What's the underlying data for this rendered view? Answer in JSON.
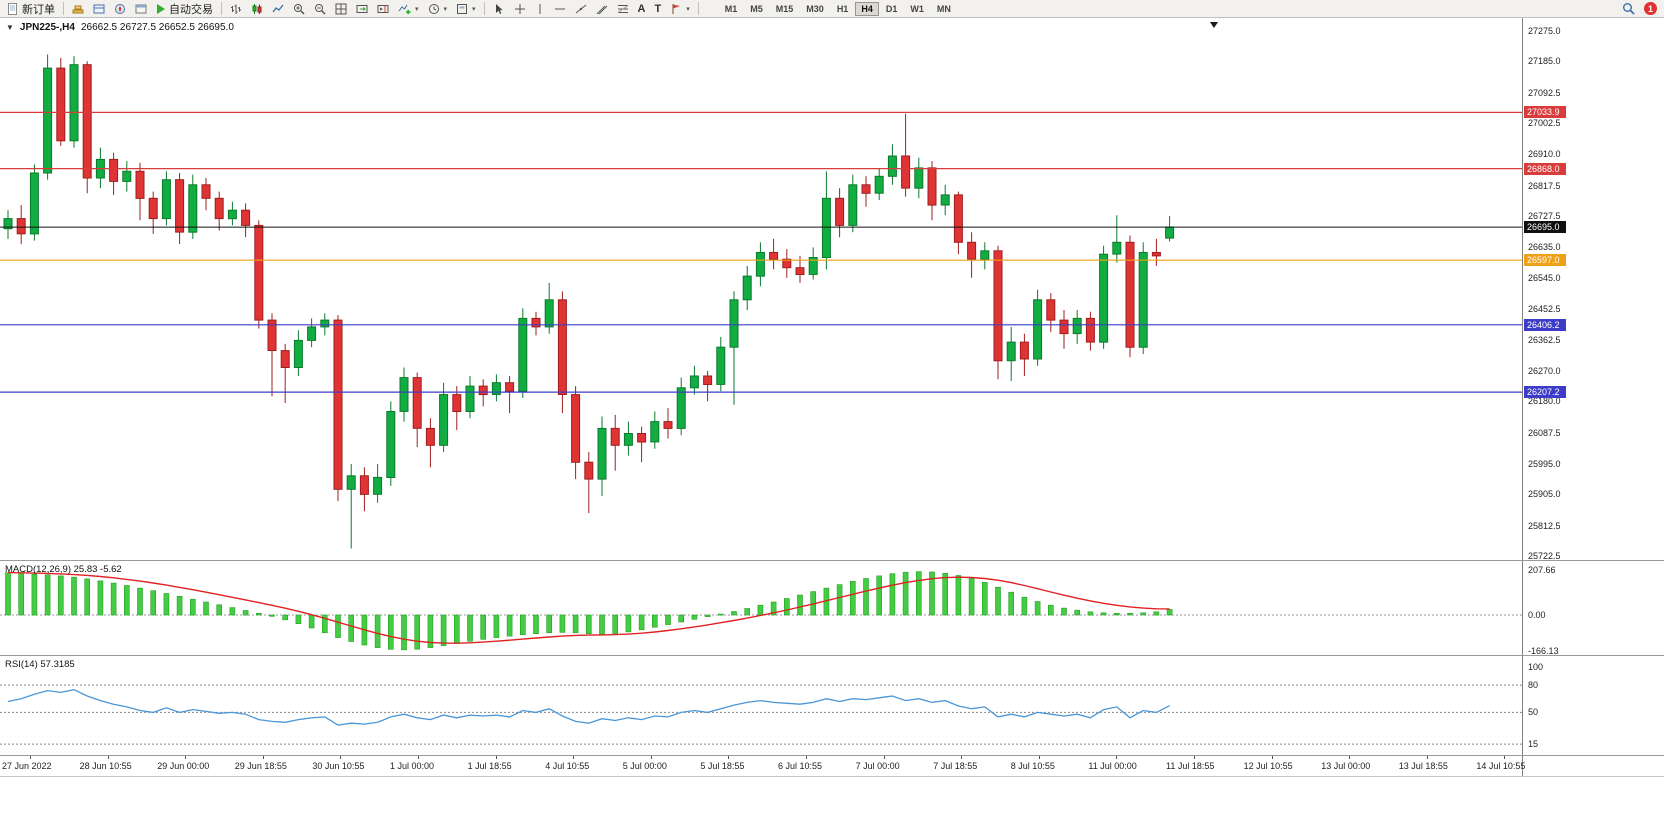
{
  "toolbar": {
    "new_order": "新订单",
    "auto_trading": "自动交易",
    "timeframes": [
      "M1",
      "M5",
      "M15",
      "M30",
      "H1",
      "H4",
      "D1",
      "W1",
      "MN"
    ],
    "active_timeframe": "H4",
    "text_tool_label": "A",
    "label_tool_label": "T",
    "notification_count": "1"
  },
  "chart": {
    "symbol_title": "JPN225-,H4",
    "ohlc_text": "26662.5 26727.5 26652.5 26695.0",
    "price_axis_labels": [
      "27275.0",
      "27185.0",
      "27092.5",
      "27002.5",
      "26910.0",
      "26817.5",
      "26727.5",
      "26635.0",
      "26545.0",
      "26452.5",
      "26362.5",
      "26270.0",
      "26180.0",
      "26087.5",
      "25995.0",
      "25905.0",
      "25812.5",
      "25722.5"
    ],
    "levels": [
      {
        "label": "27033.9",
        "price": 27033.9,
        "color": "#d83c3c"
      },
      {
        "label": "26868.0",
        "price": 26868.0,
        "color": "#d83c3c"
      },
      {
        "label": "26597.0",
        "price": 26597.0,
        "color": "#efa019"
      },
      {
        "label": "26406.2",
        "price": 26406.2,
        "color": "#3c3cc8"
      },
      {
        "label": "26207.2",
        "price": 26207.2,
        "color": "#3c3cc8"
      }
    ],
    "current_price": {
      "label": "26695.0",
      "price": 26695.0,
      "color": "#101010"
    }
  },
  "macd_panel": {
    "label": "MACD(12,26,9) 25.83 -5.62",
    "axis_labels": [
      {
        "label": "207.66",
        "value": 207.66
      },
      {
        "label": "0.00",
        "value": 0
      },
      {
        "label": "-166.13",
        "value": -166.13
      }
    ]
  },
  "rsi_panel": {
    "label": "RSI(14) 57.3185",
    "axis_labels": [
      {
        "label": "100",
        "value": 100
      },
      {
        "label": "80",
        "value": 80
      },
      {
        "label": "50",
        "value": 50
      },
      {
        "label": "15",
        "value": 15
      }
    ],
    "levels": [
      80,
      50,
      15
    ]
  },
  "time_axis": {
    "labels": [
      "27 Jun 2022",
      "28 Jun 10:55",
      "29 Jun 00:00",
      "29 Jun 18:55",
      "30 Jun 10:55",
      "1 Jul 00:00",
      "1 Jul 18:55",
      "4 Jul 10:55",
      "5 Jul 00:00",
      "5 Jul 18:55",
      "6 Jul 10:55",
      "7 Jul 00:00",
      "7 Jul 18:55",
      "8 Jul 10:55",
      "11 Jul 00:00",
      "11 Jul 18:55",
      "12 Jul 10:55",
      "13 Jul 00:00",
      "13 Jul 18:55",
      "14 Jul 10:55"
    ]
  },
  "chart_data": {
    "type": "candlestick",
    "title": "JPN225-,H4",
    "symbol": "JPN225",
    "timeframe": "H4",
    "ylim": [
      25711,
      27313
    ],
    "colors": {
      "bull": "#12ad42",
      "bull_stroke": "#0a7a2c",
      "bear": "#e03434",
      "bear_stroke": "#9e1e1e",
      "macd_bar": "#45cc45",
      "macd_bar_stroke": "#22a022",
      "macd_signal": "#e02222",
      "rsi_line": "#4a97d8"
    },
    "candles": [
      [
        26690,
        26745,
        26660,
        26720
      ],
      [
        26720,
        26760,
        26645,
        26675
      ],
      [
        26675,
        26880,
        26655,
        26855
      ],
      [
        26855,
        27205,
        26835,
        27165
      ],
      [
        27165,
        27195,
        26935,
        26950
      ],
      [
        26950,
        27200,
        26930,
        27175
      ],
      [
        27175,
        27185,
        26795,
        26840
      ],
      [
        26840,
        26930,
        26810,
        26895
      ],
      [
        26895,
        26915,
        26790,
        26830
      ],
      [
        26830,
        26890,
        26800,
        26860
      ],
      [
        26860,
        26885,
        26715,
        26780
      ],
      [
        26780,
        26800,
        26675,
        26720
      ],
      [
        26720,
        26860,
        26700,
        26835
      ],
      [
        26835,
        26855,
        26645,
        26680
      ],
      [
        26680,
        26850,
        26660,
        26820
      ],
      [
        26820,
        26840,
        26745,
        26780
      ],
      [
        26780,
        26800,
        26685,
        26720
      ],
      [
        26720,
        26770,
        26700,
        26745
      ],
      [
        26745,
        26765,
        26665,
        26700
      ],
      [
        26700,
        26715,
        26395,
        26420
      ],
      [
        26420,
        26440,
        26195,
        26330
      ],
      [
        26330,
        26350,
        26175,
        26280
      ],
      [
        26280,
        26390,
        26255,
        26360
      ],
      [
        26360,
        26425,
        26340,
        26400
      ],
      [
        26400,
        26440,
        26375,
        26420
      ],
      [
        26420,
        26435,
        25885,
        25920
      ],
      [
        25920,
        25995,
        25745,
        25960
      ],
      [
        25960,
        25985,
        25855,
        25905
      ],
      [
        25905,
        25995,
        25880,
        25955
      ],
      [
        25955,
        26180,
        25930,
        26150
      ],
      [
        26150,
        26280,
        26120,
        26250
      ],
      [
        26250,
        26265,
        26045,
        26100
      ],
      [
        26100,
        26130,
        25985,
        26050
      ],
      [
        26050,
        26235,
        26030,
        26200
      ],
      [
        26200,
        26225,
        26095,
        26150
      ],
      [
        26150,
        26255,
        26130,
        26225
      ],
      [
        26225,
        26245,
        26165,
        26200
      ],
      [
        26200,
        26260,
        26180,
        26235
      ],
      [
        26235,
        26255,
        26145,
        26210
      ],
      [
        26210,
        26455,
        26190,
        26425
      ],
      [
        26425,
        26445,
        26375,
        26400
      ],
      [
        26400,
        26530,
        26380,
        26480
      ],
      [
        26480,
        26505,
        26145,
        26200
      ],
      [
        26200,
        26225,
        25950,
        26000
      ],
      [
        26000,
        26030,
        25850,
        25950
      ],
      [
        25950,
        26135,
        25900,
        26100
      ],
      [
        26100,
        26140,
        25975,
        26050
      ],
      [
        26050,
        26120,
        26020,
        26085
      ],
      [
        26085,
        26105,
        26000,
        26060
      ],
      [
        26060,
        26150,
        26040,
        26120
      ],
      [
        26120,
        26160,
        26070,
        26100
      ],
      [
        26100,
        26250,
        26080,
        26220
      ],
      [
        26220,
        26285,
        26200,
        26255
      ],
      [
        26255,
        26270,
        26180,
        26230
      ],
      [
        26230,
        26370,
        26210,
        26340
      ],
      [
        26340,
        26505,
        26170,
        26480
      ],
      [
        26480,
        26580,
        26450,
        26550
      ],
      [
        26550,
        26650,
        26520,
        26620
      ],
      [
        26620,
        26660,
        26570,
        26600
      ],
      [
        26600,
        26630,
        26545,
        26575
      ],
      [
        26575,
        26610,
        26530,
        26555
      ],
      [
        26555,
        26635,
        26540,
        26605
      ],
      [
        26605,
        26860,
        26570,
        26780
      ],
      [
        26780,
        26810,
        26665,
        26700
      ],
      [
        26700,
        26850,
        26680,
        26820
      ],
      [
        26820,
        26845,
        26755,
        26795
      ],
      [
        26795,
        26870,
        26775,
        26845
      ],
      [
        26845,
        26940,
        26820,
        26905
      ],
      [
        26905,
        27030,
        26785,
        26810
      ],
      [
        26810,
        26900,
        26780,
        26870
      ],
      [
        26870,
        26890,
        26715,
        26760
      ],
      [
        26760,
        26820,
        26730,
        26790
      ],
      [
        26790,
        26800,
        26615,
        26650
      ],
      [
        26650,
        26680,
        26545,
        26600
      ],
      [
        26600,
        26650,
        26570,
        26625
      ],
      [
        26625,
        26640,
        26245,
        26300
      ],
      [
        26300,
        26400,
        26240,
        26355
      ],
      [
        26355,
        26380,
        26255,
        26305
      ],
      [
        26305,
        26510,
        26285,
        26480
      ],
      [
        26480,
        26500,
        26385,
        26420
      ],
      [
        26420,
        26450,
        26335,
        26380
      ],
      [
        26380,
        26450,
        26350,
        26425
      ],
      [
        26425,
        26445,
        26330,
        26355
      ],
      [
        26355,
        26640,
        26335,
        26615
      ],
      [
        26615,
        26730,
        26590,
        26650
      ],
      [
        26650,
        26670,
        26310,
        26340
      ],
      [
        26340,
        26650,
        26320,
        26620
      ],
      [
        26620,
        26660,
        26580,
        26610
      ],
      [
        26662.5,
        26727.5,
        26652.5,
        26695
      ]
    ],
    "macd": {
      "ylim": [
        -184,
        244
      ],
      "signal_period": 9,
      "histogram": [
        195,
        192,
        188,
        185,
        180,
        174,
        166,
        157,
        147,
        136,
        124,
        112,
        99,
        86,
        73,
        60,
        47,
        34,
        21,
        8,
        -6,
        -22,
        -40,
        -60,
        -82,
        -104,
        -122,
        -138,
        -150,
        -158,
        -160,
        -157,
        -150,
        -141,
        -131,
        -121,
        -112,
        -104,
        -97,
        -91,
        -86,
        -82,
        -80,
        -82,
        -86,
        -88,
        -85,
        -78,
        -68,
        -56,
        -44,
        -32,
        -20,
        -8,
        4,
        16,
        30,
        45,
        60,
        76,
        92,
        108,
        124,
        140,
        155,
        168,
        180,
        190,
        197,
        200,
        198,
        192,
        182,
        168,
        150,
        128,
        105,
        82,
        62,
        45,
        32,
        22,
        15,
        10,
        8,
        8,
        10,
        15,
        25.83
      ]
    },
    "rsi": {
      "ylim": [
        3,
        111
      ],
      "period": 14,
      "values": [
        62,
        65,
        70,
        74,
        72,
        75,
        68,
        63,
        59,
        56,
        52,
        50,
        55,
        50,
        53,
        51,
        49,
        50,
        48,
        42,
        40,
        39,
        42,
        44,
        45,
        36,
        38,
        37,
        39,
        45,
        48,
        44,
        42,
        47,
        44,
        47,
        46,
        47,
        45,
        52,
        50,
        54,
        46,
        40,
        38,
        43,
        41,
        44,
        42,
        46,
        45,
        50,
        52,
        50,
        54,
        58,
        61,
        63,
        61,
        60,
        59,
        61,
        65,
        62,
        65,
        64,
        66,
        68,
        63,
        65,
        61,
        63,
        57,
        54,
        56,
        45,
        48,
        45,
        50,
        48,
        46,
        48,
        44,
        53,
        56,
        44,
        52,
        50,
        57.32
      ]
    }
  }
}
